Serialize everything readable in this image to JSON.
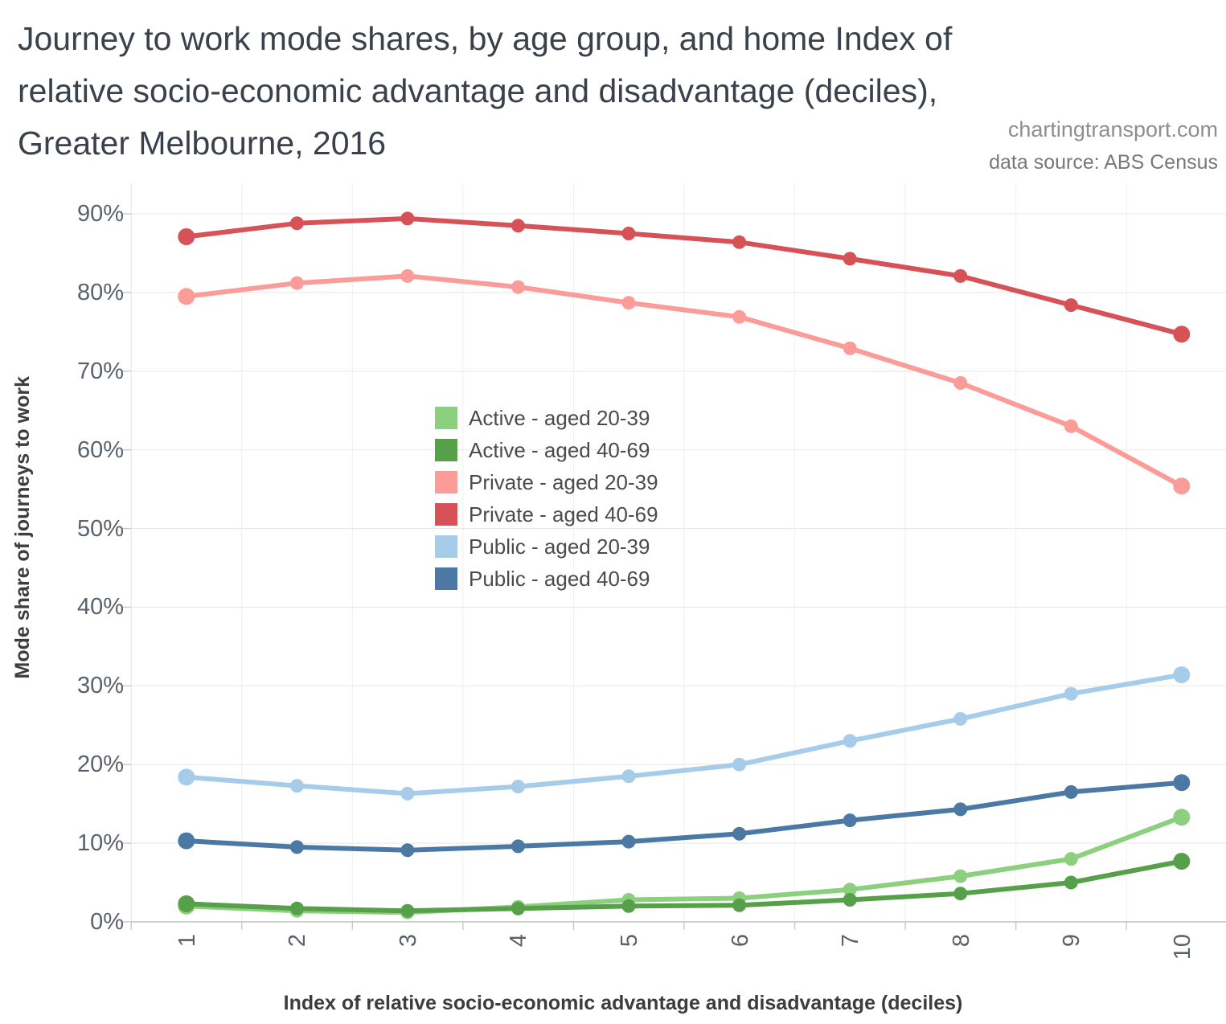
{
  "header": {
    "title_line1": "Journey to work mode shares, by age group, and home Index of",
    "title_line2": "relative socio-economic advantage and disadvantage (deciles),",
    "title_line3": "Greater Melbourne, 2016",
    "watermark": "chartingtransport.com",
    "source": "data source: ABS Census"
  },
  "chart_data": {
    "type": "line",
    "title": "Journey to work mode shares, by age group, and home Index of relative socio-economic advantage and disadvantage (deciles), Greater Melbourne, 2016",
    "xlabel": "Index of relative socio-economic advantage and disadvantage (deciles)",
    "ylabel": "Mode share of journeys to work",
    "x": [
      1,
      2,
      3,
      4,
      5,
      6,
      7,
      8,
      9,
      10
    ],
    "ylim": [
      0,
      90
    ],
    "ytick_step": 10,
    "ytick_labels": [
      "0%",
      "10%",
      "20%",
      "30%",
      "40%",
      "50%",
      "60%",
      "70%",
      "80%",
      "90%"
    ],
    "grid": true,
    "legend_position": "inside-center-left",
    "series": [
      {
        "name": "Active - aged 20-39",
        "color": "#8CD07F",
        "values": [
          2.0,
          1.4,
          1.2,
          1.9,
          2.8,
          3.0,
          4.1,
          5.8,
          8.0,
          13.3
        ]
      },
      {
        "name": "Active - aged 40-69",
        "color": "#55A049",
        "values": [
          2.3,
          1.7,
          1.4,
          1.7,
          2.0,
          2.1,
          2.8,
          3.6,
          5.0,
          7.7
        ]
      },
      {
        "name": "Private - aged 20-39",
        "color": "#FB9C98",
        "values": [
          79.5,
          81.2,
          82.1,
          80.7,
          78.7,
          76.9,
          72.9,
          68.5,
          63.0,
          55.4
        ]
      },
      {
        "name": "Private - aged 40-69",
        "color": "#D65257",
        "values": [
          87.1,
          88.8,
          89.4,
          88.5,
          87.5,
          86.4,
          84.3,
          82.1,
          78.4,
          74.7
        ]
      },
      {
        "name": "Public - aged 20-39",
        "color": "#A6CCE9",
        "values": [
          18.4,
          17.3,
          16.3,
          17.2,
          18.5,
          20.0,
          23.0,
          25.8,
          29.0,
          31.4
        ]
      },
      {
        "name": "Public - aged 40-69",
        "color": "#4C79A4",
        "values": [
          10.3,
          9.5,
          9.1,
          9.6,
          10.2,
          11.2,
          12.9,
          14.3,
          16.5,
          17.7
        ]
      }
    ]
  }
}
